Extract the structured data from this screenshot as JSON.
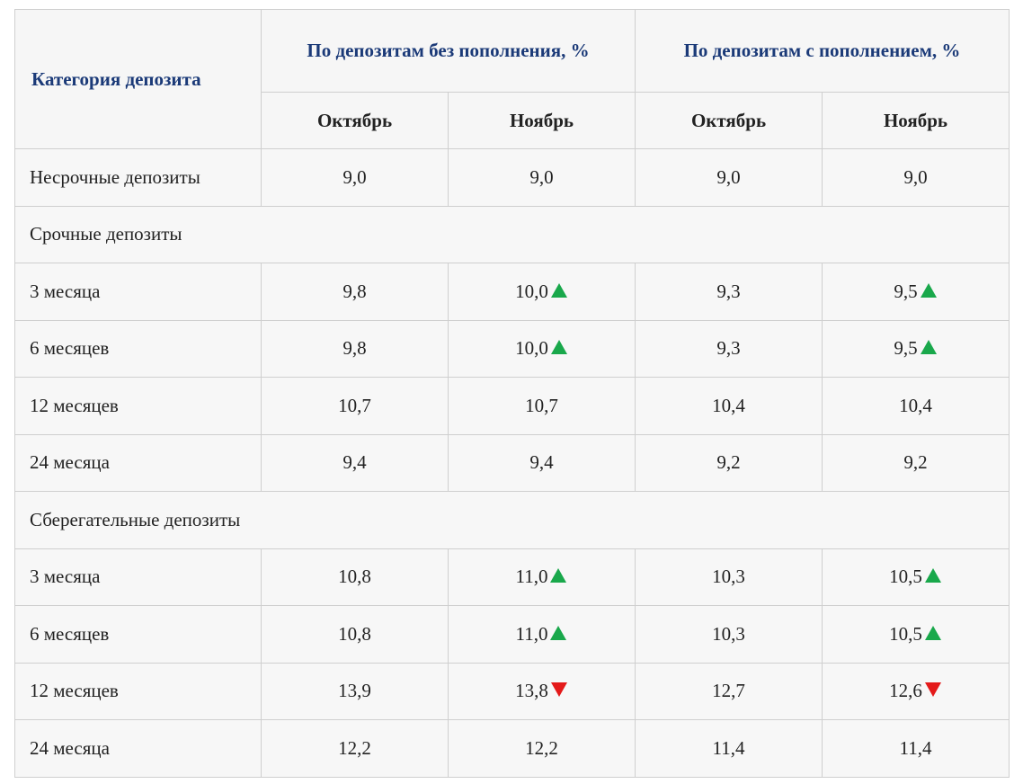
{
  "header": {
    "category": "Категория депозита",
    "groups": [
      "По депозитам без пополнения, %",
      "По депозитам с пополнением, %"
    ],
    "subheaders": [
      "Октябрь",
      "Ноябрь",
      "Октябрь",
      "Ноябрь"
    ]
  },
  "rows": [
    {
      "label": "Несрочные депозиты",
      "values": [
        "9,0",
        "9,0",
        "9,0",
        "9,0"
      ],
      "trends": [
        null,
        null,
        null,
        null
      ]
    },
    {
      "label": "Срочные депозиты"
    },
    {
      "label": "3 месяца",
      "values": [
        "9,8",
        "10,0",
        "9,3",
        "9,5"
      ],
      "trends": [
        null,
        "up",
        null,
        "up"
      ]
    },
    {
      "label": "6 месяцев",
      "values": [
        "9,8",
        "10,0",
        "9,3",
        "9,5"
      ],
      "trends": [
        null,
        "up",
        null,
        "up"
      ]
    },
    {
      "label": "12 месяцев",
      "values": [
        "10,7",
        "10,7",
        "10,4",
        "10,4"
      ],
      "trends": [
        null,
        null,
        null,
        null
      ]
    },
    {
      "label": "24 месяца",
      "values": [
        "9,4",
        "9,4",
        "9,2",
        "9,2"
      ],
      "trends": [
        null,
        null,
        null,
        null
      ]
    },
    {
      "label": "Сберегательные депозиты"
    },
    {
      "label": "3 месяца",
      "values": [
        "10,8",
        "11,0",
        "10,3",
        "10,5"
      ],
      "trends": [
        null,
        "up",
        null,
        "up"
      ]
    },
    {
      "label": "6 месяцев",
      "values": [
        "10,8",
        "11,0",
        "10,3",
        "10,5"
      ],
      "trends": [
        null,
        "up",
        null,
        "up"
      ]
    },
    {
      "label": "12 месяцев",
      "values": [
        "13,9",
        "13,8",
        "12,7",
        "12,6"
      ],
      "trends": [
        null,
        "down",
        null,
        "down"
      ]
    },
    {
      "label": "24 месяца",
      "values": [
        "12,2",
        "12,2",
        "11,4",
        "11,4"
      ],
      "trends": [
        null,
        null,
        null,
        null
      ]
    }
  ]
}
